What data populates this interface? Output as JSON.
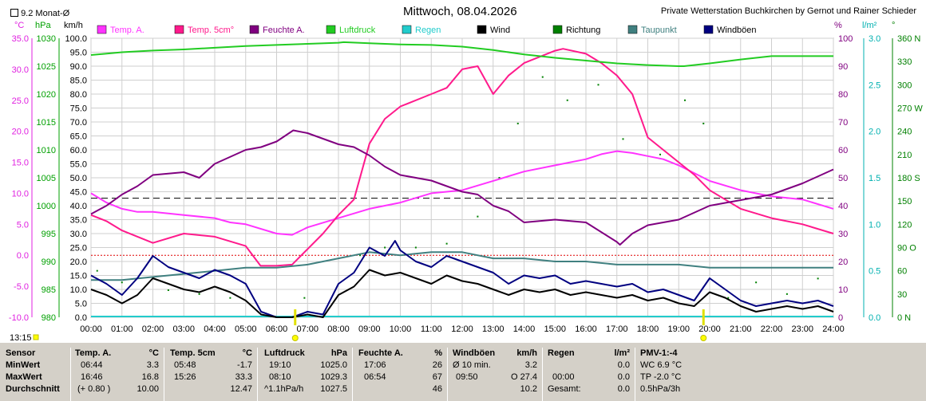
{
  "header": {
    "checkbox_label": "9.2 Monat-Ø",
    "title": "Mittwoch, 08.04.2026",
    "station": "Private Wetterstation Buchkirchen by Gernot und Rainer Schieder",
    "left_units": [
      "°C",
      "hPa",
      "km/h"
    ],
    "right_units": [
      "%",
      "l/m²",
      "°"
    ],
    "time_marker": "13:15"
  },
  "legend": [
    {
      "label": "Temp. A.",
      "color": "#ff33ff"
    },
    {
      "label": "Temp. 5cm°",
      "color": "#ff1a8c"
    },
    {
      "label": "Feuchte A.",
      "color": "#800080"
    },
    {
      "label": "Luftdruck",
      "color": "#22cc22"
    },
    {
      "label": "Regen",
      "color": "#22cccc"
    },
    {
      "label": "Wind",
      "color": "#000000"
    },
    {
      "label": "Richtung",
      "color": "#008000"
    },
    {
      "label": "Taupunkt",
      "color": "#408080"
    },
    {
      "label": "Windböen",
      "color": "#000080"
    }
  ],
  "colors": {
    "temp_axis": "#e020e0",
    "pressure_axis": "#00a000",
    "wind_axis": "#000000",
    "humidity_axis": "#800080",
    "rain_axis": "#00b0b0",
    "dir_axis": "#008000",
    "grid": "#cfcfcf"
  },
  "chart_data": {
    "type": "line",
    "title": "Mittwoch, 08.04.2026",
    "x_ticks": [
      "00:00",
      "01:00",
      "02:00",
      "03:00",
      "04:00",
      "05:00",
      "06:00",
      "07:00",
      "08:00",
      "09:00",
      "10:00",
      "11:00",
      "12:00",
      "13:00",
      "14:00",
      "15:00",
      "16:00",
      "17:00",
      "18:00",
      "19:00",
      "20:00",
      "21:00",
      "22:00",
      "23:00",
      "24:00"
    ],
    "axes": {
      "temp_c": {
        "ticks": [
          "35.0",
          "30.0",
          "25.0",
          "20.0",
          "15.0",
          "10.0",
          "5.0",
          "0.0",
          "-5.0",
          "-10.0"
        ],
        "range": [
          -10,
          35
        ]
      },
      "pressure_hpa": {
        "ticks": [
          "1030",
          "1025",
          "1020",
          "1015",
          "1010",
          "1005",
          "1000",
          "995",
          "990",
          "985",
          "980"
        ],
        "range": [
          980,
          1030
        ]
      },
      "wind_kmh": {
        "ticks": [
          "100.0",
          "95.0",
          "90.0",
          "85.0",
          "80.0",
          "75.0",
          "70.0",
          "65.0",
          "60.0",
          "55.0",
          "50.0",
          "45.0",
          "40.0",
          "35.0",
          "30.0",
          "25.0",
          "20.0",
          "15.0",
          "10.0",
          "5.0",
          "0.0"
        ],
        "range": [
          0,
          100
        ]
      },
      "humidity_pct": {
        "ticks": [
          "100",
          "90",
          "80",
          "70",
          "60",
          "50",
          "40",
          "30",
          "20",
          "10",
          "0"
        ],
        "range": [
          0,
          100
        ]
      },
      "rain_lm2": {
        "ticks": [
          "3.0",
          "2.5",
          "2.0",
          "1.5",
          "1.0",
          "0.5",
          "0.0"
        ],
        "range": [
          0,
          3
        ]
      },
      "direction_deg": {
        "ticks": [
          "360 N",
          "330",
          "300",
          "270 W",
          "240",
          "210",
          "180 S",
          "150",
          "120",
          "90 O",
          "60",
          "30",
          "0 N"
        ],
        "range": [
          0,
          360
        ]
      }
    },
    "reference_lines": {
      "month_avg_temp_c": 9.2,
      "freezing_c": 0
    },
    "sunrise_marker_h": 6.6,
    "sunset_marker_h": 19.8,
    "series": [
      {
        "name": "Temp. A.",
        "axis": "temp_c",
        "color": "#ff33ff",
        "x": [
          0,
          0.5,
          1,
          1.5,
          2,
          3,
          4,
          4.5,
          5,
          6,
          6.5,
          7,
          8,
          9,
          10,
          11,
          12,
          13,
          14,
          15,
          16,
          16.5,
          17,
          17.5,
          18,
          18.5,
          19,
          20,
          21,
          22,
          23,
          24
        ],
        "y": [
          10.0,
          8.5,
          7.5,
          7.0,
          7.0,
          6.5,
          6.0,
          5.3,
          5.0,
          3.5,
          3.3,
          4.5,
          6.0,
          7.5,
          8.5,
          10.0,
          10.5,
          12.0,
          13.5,
          14.5,
          15.5,
          16.3,
          16.8,
          16.5,
          16.0,
          15.5,
          14.5,
          12.0,
          10.5,
          9.5,
          9.0,
          7.5
        ]
      },
      {
        "name": "Temp. 5cm°",
        "axis": "temp_c",
        "color": "#ff1a8c",
        "x": [
          0,
          0.5,
          1,
          2,
          3,
          4,
          5,
          5.48,
          6,
          6.5,
          7,
          7.5,
          8,
          8.5,
          9,
          9.5,
          10,
          11,
          11.5,
          12,
          12.5,
          13,
          13.5,
          14,
          14.5,
          15,
          15.26,
          16,
          16.5,
          17,
          17.5,
          18,
          18.5,
          19,
          19.5,
          20,
          21,
          22,
          23,
          24
        ],
        "y": [
          6.5,
          5.5,
          4.0,
          2.0,
          3.5,
          3.0,
          1.5,
          -1.7,
          -1.7,
          -1.5,
          1.0,
          3.5,
          6.5,
          9.0,
          18.0,
          22.0,
          24.0,
          26.0,
          27.0,
          30.0,
          30.5,
          26.0,
          29.0,
          31.0,
          32.0,
          33.0,
          33.3,
          32.5,
          31.0,
          29.0,
          26.0,
          19.0,
          17.0,
          15.0,
          13.0,
          10.5,
          7.5,
          6.0,
          5.0,
          3.5
        ]
      },
      {
        "name": "Feuchte A.",
        "axis": "humidity_pct",
        "color": "#800080",
        "x": [
          0,
          0.5,
          1,
          1.5,
          2,
          3,
          3.5,
          4,
          5,
          5.5,
          6,
          6.54,
          7,
          8,
          8.5,
          9,
          9.5,
          10,
          11,
          11.5,
          12,
          12.5,
          13,
          13.5,
          14,
          15,
          16,
          17,
          17.1,
          17.5,
          18,
          19,
          20,
          20.5,
          21,
          22,
          23,
          24
        ],
        "y": [
          37,
          40,
          44,
          47,
          51,
          52,
          50,
          55,
          60,
          61,
          63,
          67,
          66,
          62,
          61,
          58,
          54,
          51,
          49,
          47,
          45,
          44,
          40,
          38,
          34,
          35,
          34,
          27,
          26,
          30,
          33,
          35,
          40,
          41,
          42,
          44,
          48,
          53
        ]
      },
      {
        "name": "Luftdruck",
        "axis": "pressure_hpa",
        "color": "#22cc22",
        "x": [
          0,
          1,
          2,
          3,
          4,
          5,
          6,
          7,
          8,
          8.17,
          9,
          10,
          11,
          12,
          13,
          14,
          15,
          16,
          17,
          18,
          19,
          19.17,
          20,
          21,
          22,
          23,
          24
        ],
        "y": [
          1027.0,
          1027.5,
          1027.8,
          1028.0,
          1028.3,
          1028.6,
          1028.8,
          1029.0,
          1029.2,
          1029.3,
          1029.1,
          1028.9,
          1028.8,
          1028.5,
          1027.9,
          1027.1,
          1026.5,
          1026.0,
          1025.5,
          1025.2,
          1025.0,
          1025.0,
          1025.5,
          1026.2,
          1026.8,
          1026.8,
          1026.8
        ]
      },
      {
        "name": "Taupunkt",
        "axis": "temp_c",
        "color": "#408080",
        "x": [
          0,
          1,
          2,
          3,
          4,
          5,
          6,
          7,
          8,
          9,
          10,
          11,
          12,
          13,
          14,
          15,
          16,
          17,
          18,
          19,
          20,
          21,
          22,
          23,
          24
        ],
        "y": [
          -4.0,
          -4.0,
          -3.5,
          -3.0,
          -2.5,
          -2.0,
          -2.0,
          -1.5,
          -0.5,
          0.5,
          0.0,
          0.5,
          0.5,
          -0.5,
          -0.5,
          -1.0,
          -1.0,
          -1.5,
          -1.5,
          -1.5,
          -2.0,
          -2.0,
          -2.0,
          -2.0,
          -2.0
        ]
      },
      {
        "name": "Windböen",
        "axis": "wind_kmh",
        "color": "#000080",
        "x": [
          0,
          0.5,
          1,
          1.5,
          2,
          2.5,
          3,
          3.5,
          4,
          4.5,
          5,
          5.5,
          6,
          6.5,
          7,
          7.5,
          8,
          8.5,
          9,
          9.5,
          9.83,
          10,
          10.5,
          11,
          11.5,
          12,
          12.5,
          13,
          13.5,
          14,
          14.5,
          15,
          15.5,
          16,
          16.5,
          17,
          17.5,
          18,
          18.5,
          19,
          19.5,
          20,
          20.5,
          21,
          21.5,
          22,
          22.5,
          23,
          23.5,
          24
        ],
        "y": [
          15,
          12,
          8,
          14,
          22,
          18,
          16,
          14,
          17,
          15,
          12,
          2,
          0,
          0,
          2,
          1,
          12,
          16,
          25,
          22,
          27.4,
          24,
          20,
          18,
          22,
          20,
          18,
          16,
          12,
          15,
          14,
          15,
          12,
          13,
          12,
          11,
          12,
          9,
          10,
          8,
          6,
          14,
          10,
          6,
          4,
          5,
          6,
          5,
          6,
          4
        ]
      },
      {
        "name": "Wind",
        "axis": "wind_kmh",
        "color": "#000000",
        "x": [
          0,
          0.5,
          1,
          1.5,
          2,
          2.5,
          3,
          3.5,
          4,
          4.5,
          5,
          5.5,
          6,
          6.5,
          7,
          7.5,
          8,
          8.5,
          9,
          9.5,
          10,
          10.5,
          11,
          11.5,
          12,
          12.5,
          13,
          13.5,
          14,
          14.5,
          15,
          15.5,
          16,
          16.5,
          17,
          17.5,
          18,
          18.5,
          19,
          19.5,
          20,
          20.5,
          21,
          21.5,
          22,
          22.5,
          23,
          23.5,
          24
        ],
        "y": [
          10,
          8,
          5,
          8,
          14,
          12,
          10,
          9,
          11,
          9,
          6,
          1,
          0,
          0,
          1,
          0,
          8,
          11,
          17,
          15,
          16,
          14,
          12,
          15,
          13,
          12,
          10,
          8,
          10,
          9,
          10,
          8,
          9,
          8,
          7,
          8,
          6,
          7,
          5,
          4,
          9,
          7,
          4,
          2,
          3,
          4,
          3,
          4,
          2
        ]
      }
    ],
    "direction_points_deg": [
      {
        "x": 0.2,
        "y": 60
      },
      {
        "x": 1.0,
        "y": 45
      },
      {
        "x": 2.5,
        "y": 35
      },
      {
        "x": 3.5,
        "y": 30
      },
      {
        "x": 4.5,
        "y": 25
      },
      {
        "x": 6.9,
        "y": 25
      },
      {
        "x": 8.7,
        "y": 80
      },
      {
        "x": 9.5,
        "y": 90
      },
      {
        "x": 10.5,
        "y": 90
      },
      {
        "x": 11.5,
        "y": 95
      },
      {
        "x": 12.5,
        "y": 130
      },
      {
        "x": 13.2,
        "y": 180
      },
      {
        "x": 13.8,
        "y": 250
      },
      {
        "x": 14.6,
        "y": 310
      },
      {
        "x": 15.4,
        "y": 280
      },
      {
        "x": 16.4,
        "y": 300
      },
      {
        "x": 17.2,
        "y": 230
      },
      {
        "x": 18.4,
        "y": 210
      },
      {
        "x": 19.2,
        "y": 280
      },
      {
        "x": 19.8,
        "y": 250
      },
      {
        "x": 20.6,
        "y": 25
      },
      {
        "x": 21.5,
        "y": 45
      },
      {
        "x": 22.5,
        "y": 30
      },
      {
        "x": 23.5,
        "y": 50
      }
    ]
  },
  "stats": {
    "sensor": {
      "title": "Sensor",
      "rows": [
        "MinWert",
        "MaxWert",
        "Durchschnitt"
      ]
    },
    "temp_a": {
      "title": "Temp. A.",
      "unit": "°C",
      "rows": [
        [
          "06:44",
          "3.3"
        ],
        [
          "16:46",
          "16.8"
        ],
        [
          "(+ 0.80 )",
          "10.00"
        ]
      ]
    },
    "temp_5cm": {
      "title": "Temp. 5cm",
      "unit": "°C",
      "rows": [
        [
          "05:48",
          "-1.7"
        ],
        [
          "15:26",
          "33.3"
        ],
        [
          "",
          "12.47"
        ]
      ]
    },
    "luftdruck": {
      "title": "Luftdruck",
      "unit": "hPa",
      "rows": [
        [
          "19:10",
          "1025.0"
        ],
        [
          "08:10",
          "1029.3"
        ],
        [
          "^1.1hPa/h",
          "1027.5"
        ]
      ]
    },
    "feuchte": {
      "title": "Feuchte A.",
      "unit": "%",
      "rows": [
        [
          "17:06",
          "26"
        ],
        [
          "06:54",
          "67"
        ],
        [
          "",
          "46"
        ]
      ]
    },
    "windboeen": {
      "title": "Windböen",
      "unit": "km/h",
      "rows": [
        [
          "Ø 10 min.",
          "3.2"
        ],
        [
          "09:50",
          "O 27.4"
        ],
        [
          "",
          "10.2"
        ]
      ]
    },
    "regen": {
      "title": "Regen",
      "unit": "l/m²",
      "rows": [
        [
          "",
          "0.0"
        ],
        [
          "00:00",
          "0.0"
        ],
        [
          "Gesamt:",
          "0.0"
        ]
      ]
    },
    "pmv": {
      "title": "PMV-1:-4",
      "rows": [
        "WC 6.9 °C",
        "TP -2.0 °C",
        "0.5hPa/3h"
      ]
    }
  }
}
